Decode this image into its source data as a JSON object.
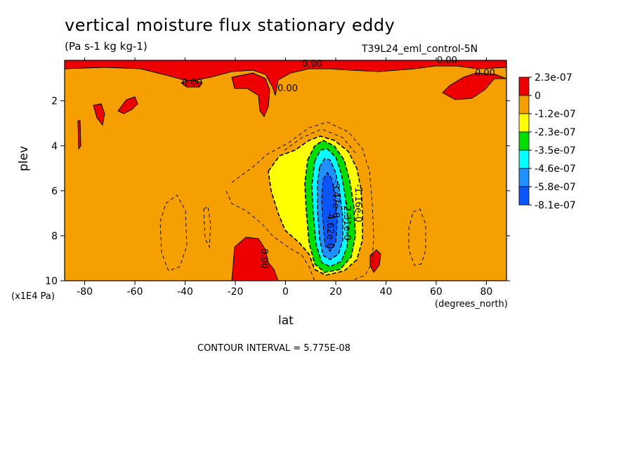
{
  "chart_data": {
    "type": "heatmap",
    "title": "vertical moisture flux stationary eddy",
    "units": "(Pa s-1 kg kg-1)",
    "run_label": "T39L24_eml_control-5N",
    "xlabel": "lat",
    "x_units": "(degrees_north)",
    "ylabel": "plev",
    "y_units": "(x1E4 Pa)",
    "x_ticks": [
      "-80",
      "-60",
      "-40",
      "-20",
      "0",
      "20",
      "40",
      "60",
      "80"
    ],
    "x_tick_values": [
      -80,
      -60,
      -40,
      -20,
      0,
      20,
      40,
      60,
      80
    ],
    "y_ticks": [
      "2",
      "4",
      "6",
      "8",
      "10"
    ],
    "y_tick_values": [
      2,
      4,
      6,
      8,
      10
    ],
    "xlim": [
      -88,
      88
    ],
    "ylim": [
      10,
      0.2
    ],
    "y_inverted": true,
    "contour_interval_text": "CONTOUR INTERVAL = 5.775E-08",
    "contour_labels": [
      "0.00",
      "0.00",
      "0.00",
      "0.00",
      "0.00",
      "-1.16e-0",
      "-2.31e-0",
      "-3.47e-0",
      "-4.62e-0"
    ],
    "colorbar": {
      "labels": [
        "2.3e-07",
        "0",
        "-1.2e-07",
        "-2.3e-07",
        "-3.5e-07",
        "-4.6e-07",
        "-5.8e-07",
        "-8.1e-07"
      ],
      "colors": [
        "#ee0000",
        "#f5a000",
        "#ffff00",
        "#00dd00",
        "#00ffff",
        "#1e90ff",
        "#0a55ff"
      ]
    },
    "colors": {
      "background_field": "#f5a000",
      "positive": "#ee0000",
      "neg1": "#ffff00",
      "neg2": "#00dd00",
      "neg3": "#00ffff",
      "neg4": "#1e90ff",
      "neg5": "#0a55ff"
    }
  }
}
